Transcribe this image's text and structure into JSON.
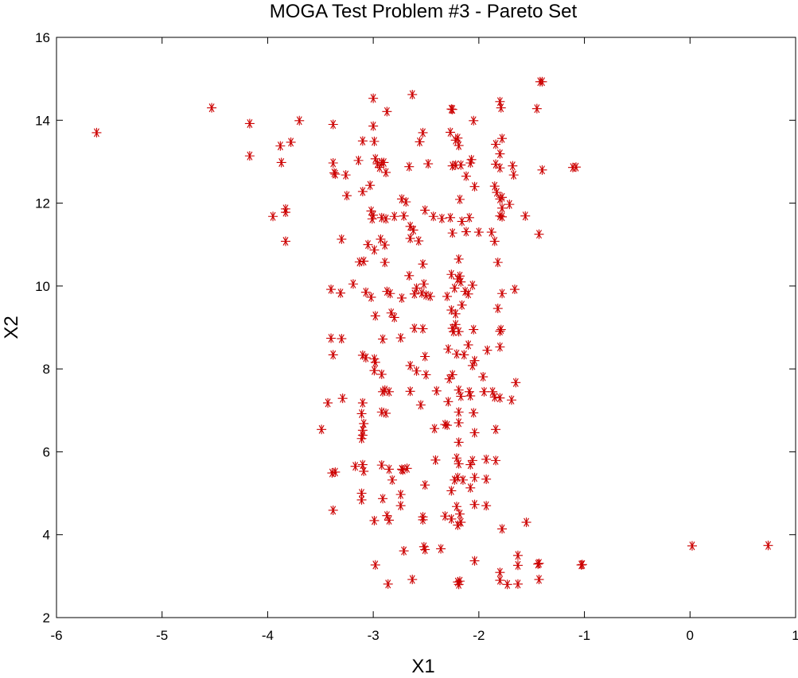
{
  "chart_data": {
    "type": "scatter",
    "title": "MOGA Test Problem #3 - Pareto Set",
    "xlabel": "X1",
    "ylabel": "X2",
    "xlim": [
      -6,
      1
    ],
    "ylim": [
      2,
      16
    ],
    "xticks": [
      -6,
      -5,
      -4,
      -3,
      -2,
      -1,
      0,
      1
    ],
    "yticks": [
      2,
      4,
      6,
      8,
      10,
      12,
      14,
      16
    ],
    "grid": false,
    "marker": "asterisk",
    "color": "#cc0000",
    "points": [
      [
        -5.62,
        13.7
      ],
      [
        -4.53,
        14.3
      ],
      [
        -4.17,
        13.92
      ],
      [
        -4.17,
        13.14
      ],
      [
        -3.88,
        13.38
      ],
      [
        -3.87,
        12.98
      ],
      [
        -3.78,
        13.47
      ],
      [
        -3.7,
        13.99
      ],
      [
        -3.95,
        11.68
      ],
      [
        -3.83,
        11.78
      ],
      [
        -3.83,
        11.86
      ],
      [
        -3.83,
        11.08
      ],
      [
        -3.38,
        13.9
      ],
      [
        -3.38,
        12.97
      ],
      [
        -3.37,
        12.73
      ],
      [
        -3.36,
        12.7
      ],
      [
        -3.26,
        12.68
      ],
      [
        -3.25,
        12.18
      ],
      [
        -3.3,
        11.13
      ],
      [
        -3.14,
        13.03
      ],
      [
        -3.1,
        13.5
      ],
      [
        -3.1,
        12.28
      ],
      [
        -3.03,
        12.43
      ],
      [
        -3.0,
        14.53
      ],
      [
        -3.0,
        13.86
      ],
      [
        -2.99,
        13.49
      ],
      [
        -2.98,
        13.07
      ],
      [
        -2.96,
        12.95
      ],
      [
        -2.94,
        12.86
      ],
      [
        -2.92,
        12.98
      ],
      [
        -2.9,
        12.98
      ],
      [
        -2.88,
        12.74
      ],
      [
        -2.87,
        14.21
      ],
      [
        -2.63,
        14.62
      ],
      [
        -2.66,
        12.88
      ],
      [
        -2.56,
        13.48
      ],
      [
        -2.53,
        13.7
      ],
      [
        -2.48,
        12.95
      ],
      [
        -2.27,
        13.71
      ],
      [
        -2.25,
        14.26
      ],
      [
        -2.26,
        14.27
      ],
      [
        -2.22,
        13.52
      ],
      [
        -2.2,
        13.57
      ],
      [
        -2.19,
        13.39
      ],
      [
        -2.25,
        12.9
      ],
      [
        -2.22,
        12.92
      ],
      [
        -2.17,
        12.92
      ],
      [
        -2.08,
        12.97
      ],
      [
        -2.07,
        13.05
      ],
      [
        -2.05,
        13.99
      ],
      [
        -1.84,
        13.42
      ],
      [
        -1.8,
        13.19
      ],
      [
        -1.78,
        13.56
      ],
      [
        -1.8,
        14.45
      ],
      [
        -1.79,
        14.3
      ],
      [
        -1.42,
        14.93
      ],
      [
        -1.4,
        14.93
      ],
      [
        -1.45,
        14.28
      ],
      [
        -1.4,
        12.8
      ],
      [
        -1.08,
        12.87
      ],
      [
        -1.11,
        12.86
      ],
      [
        -1.84,
        12.94
      ],
      [
        -1.8,
        12.85
      ],
      [
        -1.68,
        12.9
      ],
      [
        -1.67,
        12.68
      ],
      [
        -1.03,
        3.27
      ],
      [
        -1.02,
        3.28
      ],
      [
        0.02,
        3.73
      ],
      [
        0.74,
        3.74
      ],
      [
        -3.02,
        11.81
      ],
      [
        -3.01,
        11.62
      ],
      [
        -3.0,
        11.71
      ],
      [
        -2.92,
        11.65
      ],
      [
        -2.88,
        11.62
      ],
      [
        -2.8,
        11.68
      ],
      [
        -2.73,
        12.1
      ],
      [
        -2.69,
        12.03
      ],
      [
        -2.71,
        11.69
      ],
      [
        -2.65,
        11.44
      ],
      [
        -2.51,
        11.83
      ],
      [
        -2.43,
        11.68
      ],
      [
        -2.35,
        11.63
      ],
      [
        -2.27,
        11.65
      ],
      [
        -2.25,
        11.28
      ],
      [
        -2.18,
        12.09
      ],
      [
        -2.16,
        11.56
      ],
      [
        -2.09,
        11.65
      ],
      [
        -2.12,
        12.65
      ],
      [
        -2.04,
        12.4
      ],
      [
        -1.85,
        12.41
      ],
      [
        -1.83,
        12.26
      ],
      [
        -1.8,
        12.1
      ],
      [
        -1.78,
        12.14
      ],
      [
        -1.78,
        11.88
      ],
      [
        -1.78,
        11.67
      ],
      [
        -1.8,
        11.69
      ],
      [
        -1.71,
        11.97
      ],
      [
        -1.56,
        11.69
      ],
      [
        -1.43,
        11.25
      ],
      [
        -3.13,
        10.58
      ],
      [
        -3.09,
        10.6
      ],
      [
        -3.05,
        11.0
      ],
      [
        -2.99,
        10.87
      ],
      [
        -2.93,
        11.13
      ],
      [
        -2.89,
        10.57
      ],
      [
        -2.89,
        10.99
      ],
      [
        -2.65,
        11.15
      ],
      [
        -2.62,
        11.35
      ],
      [
        -2.57,
        11.09
      ],
      [
        -2.53,
        10.53
      ],
      [
        -2.12,
        11.31
      ],
      [
        -2.0,
        11.3
      ],
      [
        -1.88,
        11.3
      ],
      [
        -1.85,
        11.08
      ],
      [
        -1.82,
        10.57
      ],
      [
        -2.19,
        10.65
      ],
      [
        -3.4,
        9.92
      ],
      [
        -3.31,
        9.83
      ],
      [
        -3.19,
        10.05
      ],
      [
        -3.07,
        9.85
      ],
      [
        -3.02,
        9.73
      ],
      [
        -2.98,
        9.28
      ],
      [
        -2.87,
        9.87
      ],
      [
        -2.84,
        9.82
      ],
      [
        -2.83,
        9.35
      ],
      [
        -2.8,
        9.24
      ],
      [
        -2.73,
        9.71
      ],
      [
        -2.66,
        10.25
      ],
      [
        -2.61,
        9.81
      ],
      [
        -2.59,
        9.95
      ],
      [
        -2.54,
        9.83
      ],
      [
        -2.52,
        10.05
      ],
      [
        -2.5,
        9.78
      ],
      [
        -2.46,
        9.75
      ],
      [
        -2.3,
        9.75
      ],
      [
        -2.26,
        10.28
      ],
      [
        -2.23,
        9.95
      ],
      [
        -2.2,
        10.17
      ],
      [
        -2.18,
        10.24
      ],
      [
        -2.17,
        10.1
      ],
      [
        -2.13,
        9.87
      ],
      [
        -2.1,
        9.81
      ],
      [
        -2.06,
        10.02
      ],
      [
        -1.78,
        9.82
      ],
      [
        -1.66,
        9.92
      ],
      [
        -2.26,
        9.42
      ],
      [
        -2.22,
        9.33
      ],
      [
        -2.16,
        9.54
      ],
      [
        -3.4,
        8.74
      ],
      [
        -3.38,
        8.34
      ],
      [
        -3.3,
        8.73
      ],
      [
        -3.1,
        8.33
      ],
      [
        -3.07,
        8.27
      ],
      [
        -2.99,
        8.24
      ],
      [
        -2.98,
        8.16
      ],
      [
        -2.91,
        8.72
      ],
      [
        -2.74,
        8.75
      ],
      [
        -2.61,
        8.98
      ],
      [
        -2.53,
        8.97
      ],
      [
        -2.51,
        8.3
      ],
      [
        -2.29,
        8.48
      ],
      [
        -2.25,
        8.98
      ],
      [
        -2.22,
        9.07
      ],
      [
        -2.19,
        8.9
      ],
      [
        -2.14,
        8.34
      ],
      [
        -2.1,
        8.58
      ],
      [
        -2.05,
        8.95
      ],
      [
        -1.82,
        9.46
      ],
      [
        -1.79,
        8.95
      ],
      [
        -1.8,
        8.91
      ],
      [
        -1.8,
        8.53
      ],
      [
        -1.92,
        8.45
      ],
      [
        -2.24,
        8.9
      ],
      [
        -2.21,
        8.36
      ],
      [
        -3.43,
        7.18
      ],
      [
        -3.29,
        7.29
      ],
      [
        -3.1,
        7.18
      ],
      [
        -3.11,
        6.92
      ],
      [
        -3.09,
        6.68
      ],
      [
        -3.1,
        6.52
      ],
      [
        -2.99,
        7.96
      ],
      [
        -2.92,
        7.87
      ],
      [
        -2.89,
        7.49
      ],
      [
        -2.91,
        7.45
      ],
      [
        -2.85,
        7.45
      ],
      [
        -2.65,
        8.08
      ],
      [
        -2.59,
        7.95
      ],
      [
        -2.5,
        7.86
      ],
      [
        -2.4,
        7.47
      ],
      [
        -2.29,
        7.21
      ],
      [
        -2.28,
        7.76
      ],
      [
        -2.25,
        7.86
      ],
      [
        -2.19,
        7.49
      ],
      [
        -2.17,
        7.34
      ],
      [
        -2.09,
        7.45
      ],
      [
        -2.08,
        7.35
      ],
      [
        -2.04,
        8.2
      ],
      [
        -2.06,
        8.08
      ],
      [
        -1.96,
        7.81
      ],
      [
        -1.85,
        7.32
      ],
      [
        -1.8,
        7.3
      ],
      [
        -1.69,
        7.25
      ],
      [
        -1.65,
        7.67
      ],
      [
        -2.92,
        6.96
      ],
      [
        -2.88,
        6.93
      ],
      [
        -2.65,
        7.46
      ],
      [
        -2.55,
        7.13
      ],
      [
        -2.42,
        6.56
      ],
      [
        -2.32,
        6.66
      ],
      [
        -2.3,
        6.64
      ],
      [
        -2.19,
        6.96
      ],
      [
        -2.19,
        6.7
      ],
      [
        -2.19,
        6.23
      ],
      [
        -2.05,
        6.94
      ],
      [
        -1.95,
        7.45
      ],
      [
        -1.87,
        7.45
      ],
      [
        -3.49,
        6.54
      ],
      [
        -3.11,
        6.32
      ],
      [
        -3.1,
        6.4
      ],
      [
        -2.04,
        6.46
      ],
      [
        -1.84,
        6.54
      ],
      [
        -1.93,
        5.82
      ],
      [
        -1.84,
        5.79
      ],
      [
        -2.21,
        5.85
      ],
      [
        -2.19,
        5.71
      ],
      [
        -2.06,
        5.79
      ],
      [
        -2.08,
        5.69
      ],
      [
        -3.39,
        5.49
      ],
      [
        -3.36,
        5.51
      ],
      [
        -3.17,
        5.65
      ],
      [
        -3.1,
        5.69
      ],
      [
        -3.09,
        5.53
      ],
      [
        -2.92,
        5.68
      ],
      [
        -2.85,
        5.58
      ],
      [
        -2.82,
        5.32
      ],
      [
        -2.73,
        5.58
      ],
      [
        -2.72,
        5.56
      ],
      [
        -2.68,
        5.6
      ],
      [
        -2.41,
        5.8
      ],
      [
        -2.51,
        5.2
      ],
      [
        -2.23,
        5.32
      ],
      [
        -2.2,
        5.38
      ],
      [
        -2.15,
        5.32
      ],
      [
        -2.08,
        5.13
      ],
      [
        -2.04,
        5.38
      ],
      [
        -1.93,
        5.34
      ],
      [
        -3.11,
        5.0
      ],
      [
        -3.11,
        4.84
      ],
      [
        -2.91,
        4.87
      ],
      [
        -2.74,
        4.97
      ],
      [
        -2.74,
        4.7
      ],
      [
        -2.26,
        5.06
      ],
      [
        -2.21,
        4.68
      ],
      [
        -2.18,
        4.5
      ],
      [
        -2.04,
        4.73
      ],
      [
        -1.93,
        4.7
      ],
      [
        -3.38,
        4.59
      ],
      [
        -2.99,
        4.34
      ],
      [
        -2.87,
        4.46
      ],
      [
        -2.85,
        4.35
      ],
      [
        -2.53,
        4.43
      ],
      [
        -2.53,
        4.36
      ],
      [
        -2.32,
        4.45
      ],
      [
        -2.26,
        4.38
      ],
      [
        -2.2,
        4.23
      ],
      [
        -2.17,
        4.3
      ],
      [
        -1.78,
        4.14
      ],
      [
        -1.55,
        4.3
      ],
      [
        -2.71,
        3.61
      ],
      [
        -2.52,
        3.71
      ],
      [
        -2.51,
        3.64
      ],
      [
        -2.36,
        3.66
      ],
      [
        -2.98,
        3.27
      ],
      [
        -2.86,
        2.81
      ],
      [
        -2.63,
        2.92
      ],
      [
        -2.2,
        2.86
      ],
      [
        -2.18,
        2.88
      ],
      [
        -2.19,
        2.8
      ],
      [
        -2.04,
        3.37
      ],
      [
        -1.8,
        3.09
      ],
      [
        -1.8,
        2.9
      ],
      [
        -1.73,
        2.8
      ],
      [
        -1.63,
        3.5
      ],
      [
        -1.63,
        3.26
      ],
      [
        -1.63,
        2.81
      ],
      [
        -1.44,
        3.29
      ],
      [
        -1.43,
        3.31
      ],
      [
        -1.43,
        2.92
      ]
    ]
  }
}
